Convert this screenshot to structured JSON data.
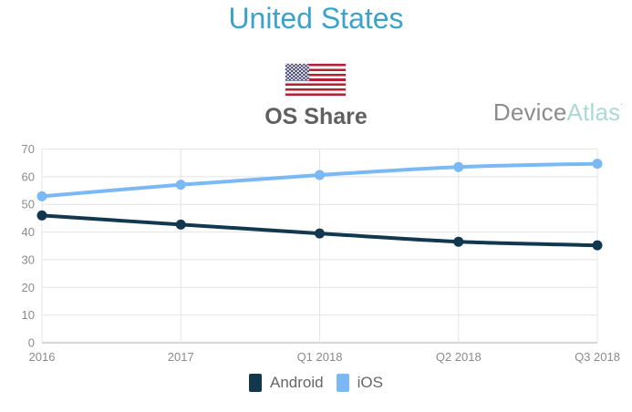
{
  "title": "United States",
  "flag": {
    "country": "United States"
  },
  "brand": {
    "gray_part": "Device",
    "teal_part": "Atlas",
    "mark": "’"
  },
  "colors": {
    "title": "#3AA3CB",
    "heading": "#606060",
    "brand_gray": "#8C8C8C",
    "brand_teal": "#A9DAD5",
    "android": "#12384F",
    "ios": "#7AB9F5",
    "grid": "#E4E4E4",
    "axis": "#A8A8A8",
    "tick_label": "#8A8A8A",
    "flag_red": "#B22234",
    "flag_blue": "#3C3B6E"
  },
  "chart_data": {
    "type": "line",
    "title": "OS Share",
    "categories": [
      "2016",
      "2017",
      "Q1 2018",
      "Q2 2018",
      "Q3 2018"
    ],
    "series": [
      {
        "name": "Android",
        "color": "#12384F",
        "values": [
          46,
          42.7,
          39.5,
          36.5,
          35.2
        ]
      },
      {
        "name": "iOS",
        "color": "#7AB9F5",
        "values": [
          52.9,
          57.1,
          60.6,
          63.5,
          64.7
        ]
      }
    ],
    "xlabel": "",
    "ylabel": "",
    "ylim": [
      0,
      70
    ],
    "ytick_step": 10,
    "grid": true,
    "line_smooth": true,
    "legend_position": "bottom"
  }
}
